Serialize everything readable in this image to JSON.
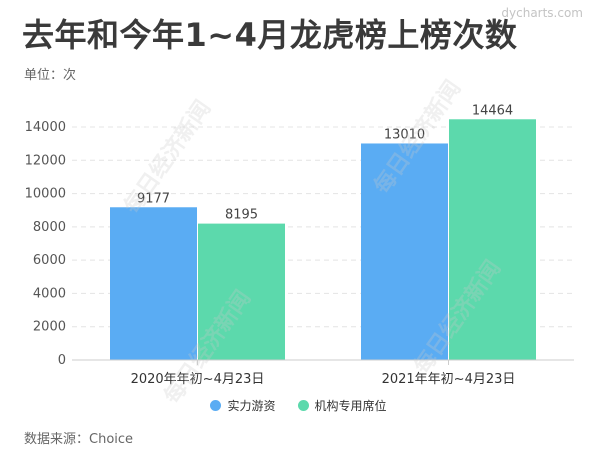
{
  "header": {
    "title": "去年和今年1~4月龙虎榜上榜次数",
    "unit": "单位：次",
    "logo": "dycharts.com"
  },
  "footer": {
    "source": "数据来源：Choice"
  },
  "watermark": "每日经济新闻",
  "colors": {
    "series1": "#5aacf3",
    "series2": "#5cd9ac",
    "grid": "#e4e4e4",
    "axis": "#cccccc"
  },
  "chart_data": {
    "type": "bar",
    "categories": [
      "2020年年初~4月23日",
      "2021年年初~4月23日"
    ],
    "series": [
      {
        "name": "实力游资",
        "values": [
          9177,
          13010
        ]
      },
      {
        "name": "机构专用席位",
        "values": [
          8195,
          14464
        ]
      }
    ],
    "title": "去年和今年1~4月龙虎榜上榜次数",
    "ylabel": "单位：次",
    "ylim": [
      0,
      14000
    ],
    "yticks": [
      0,
      2000,
      4000,
      6000,
      8000,
      10000,
      12000,
      14000
    ],
    "grid": true,
    "legend": "bottom",
    "data_labels": true
  }
}
